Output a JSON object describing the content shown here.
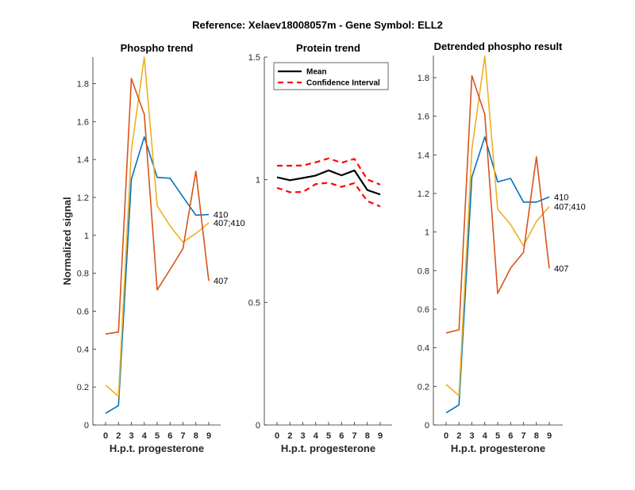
{
  "figure": {
    "suptitle": "Reference:  Xelaev18008057m - Gene Symbol:  ELL2"
  },
  "colors": {
    "blue": "#0072BD",
    "orange": "#D95319",
    "yellow": "#EDB120",
    "mean": "#000000",
    "ci": "#FF0000",
    "axis": "#262626"
  },
  "chart_data": [
    {
      "type": "line",
      "title": "Phospho trend",
      "xlabel": "H.p.t. progesterone",
      "ylabel": "Normalized signal",
      "categories": [
        "0",
        "2",
        "3",
        "4",
        "5",
        "6",
        "7",
        "8",
        "9"
      ],
      "ylim": [
        0,
        1.94
      ],
      "yticks": [
        0,
        0.2,
        0.4,
        0.6,
        0.8,
        1,
        1.2,
        1.4,
        1.6,
        1.8
      ],
      "ytick_labels": [
        "0",
        "0.2",
        "0.4",
        "0.6",
        "0.8",
        "1",
        "1.2",
        "1.4",
        "1.6",
        "1.8"
      ],
      "grid": false,
      "series": [
        {
          "name": "410",
          "color": "blue",
          "values": [
            0.062,
            0.102,
            1.296,
            1.519,
            1.306,
            1.301,
            1.203,
            1.106,
            1.11
          ]
        },
        {
          "name": "407;410",
          "color": "yellow",
          "values": [
            0.21,
            0.151,
            1.447,
            1.94,
            1.156,
            1.05,
            0.964,
            1.01,
            1.066
          ]
        },
        {
          "name": "407",
          "color": "orange",
          "values": [
            0.48,
            0.49,
            1.827,
            1.638,
            0.712,
            0.82,
            0.93,
            1.338,
            0.76
          ]
        }
      ]
    },
    {
      "type": "line",
      "title": "Protein trend",
      "xlabel": "H.p.t. progesterone",
      "ylabel": "",
      "categories": [
        "0",
        "2",
        "3",
        "4",
        "5",
        "6",
        "7",
        "8",
        "9"
      ],
      "ylim": [
        0,
        1.5
      ],
      "yticks": [
        0,
        0.5,
        1,
        1.5
      ],
      "ytick_labels": [
        "0",
        "0.5",
        "1",
        "1.5"
      ],
      "grid": false,
      "legend": {
        "position": "top-left",
        "entries": [
          {
            "label": "Mean",
            "style": "solid",
            "color": "mean"
          },
          {
            "label": "Confidence Interval",
            "style": "dashed",
            "color": "ci"
          }
        ]
      },
      "series": [
        {
          "name": "Mean",
          "color": "mean",
          "style": "solid",
          "values": [
            1.01,
            0.998,
            1.007,
            1.017,
            1.038,
            1.018,
            1.038,
            0.958,
            0.94
          ]
        },
        {
          "name": "Confidence Interval (upper)",
          "color": "ci",
          "style": "dashed",
          "values": [
            1.057,
            1.057,
            1.058,
            1.071,
            1.087,
            1.069,
            1.085,
            1.001,
            0.98
          ]
        },
        {
          "name": "Confidence Interval (lower)",
          "color": "ci",
          "style": "dashed",
          "values": [
            0.967,
            0.949,
            0.95,
            0.982,
            0.988,
            0.971,
            0.986,
            0.913,
            0.891
          ]
        }
      ]
    },
    {
      "type": "line",
      "title": "Detrended phospho result",
      "xlabel": "H.p.t. progesterone",
      "ylabel": "",
      "categories": [
        "0",
        "2",
        "3",
        "4",
        "5",
        "6",
        "7",
        "8",
        "9"
      ],
      "ylim": [
        0,
        1.915
      ],
      "yticks": [
        0,
        0.2,
        0.4,
        0.6,
        0.8,
        1,
        1.2,
        1.4,
        1.6,
        1.8
      ],
      "ytick_labels": [
        "0",
        "0.2",
        "0.4",
        "0.6",
        "0.8",
        "1",
        "1.2",
        "1.4",
        "1.6",
        "1.8"
      ],
      "grid": false,
      "series": [
        {
          "name": "410",
          "color": "blue",
          "values": [
            0.063,
            0.104,
            1.285,
            1.493,
            1.26,
            1.278,
            1.155,
            1.155,
            1.182
          ]
        },
        {
          "name": "407;410",
          "color": "yellow",
          "values": [
            0.21,
            0.152,
            1.429,
            1.911,
            1.118,
            1.039,
            0.929,
            1.055,
            1.132
          ]
        },
        {
          "name": "407",
          "color": "orange",
          "values": [
            0.477,
            0.493,
            1.81,
            1.61,
            0.682,
            0.813,
            0.895,
            1.39,
            0.811
          ]
        }
      ]
    }
  ]
}
